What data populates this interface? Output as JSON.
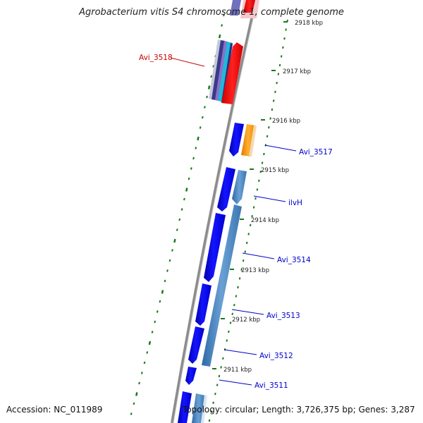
{
  "title": "Agrobacterium vitis S4 chromosome 1, complete genome",
  "footer": {
    "accession": "Accession: NC_011989",
    "summary": "Topology: circular; Length: 3,726,375 bp; Genes: 3,287"
  },
  "colors": {
    "backbone": "#8c8c8c",
    "tick": "#1a7a1a",
    "cds_forward": "#0000ee",
    "cds_reverse": "#4a86c0",
    "highlight_red": "#ff0000",
    "orange": "#ff9900",
    "label_red": "#cc0000",
    "label_blue": "#0000cc"
  },
  "scale": {
    "ticks": [
      {
        "label": "2918 kbp"
      },
      {
        "label": "2917 kbp"
      },
      {
        "label": "2916 kbp"
      },
      {
        "label": "2915 kbp"
      },
      {
        "label": "2914 kbp"
      },
      {
        "label": "2913 kbp"
      },
      {
        "label": "2912 kbp"
      },
      {
        "label": "2911 kbp"
      }
    ]
  },
  "genes": [
    {
      "label": "Avi_3518",
      "color": "red"
    },
    {
      "label": "Avi_3517",
      "color": "blue"
    },
    {
      "label": "ilvH",
      "color": "blue"
    },
    {
      "label": "Avi_3514",
      "color": "blue"
    },
    {
      "label": "Avi_3513",
      "color": "blue"
    },
    {
      "label": "Avi_3512",
      "color": "blue"
    },
    {
      "label": "Avi_3511",
      "color": "blue"
    }
  ]
}
